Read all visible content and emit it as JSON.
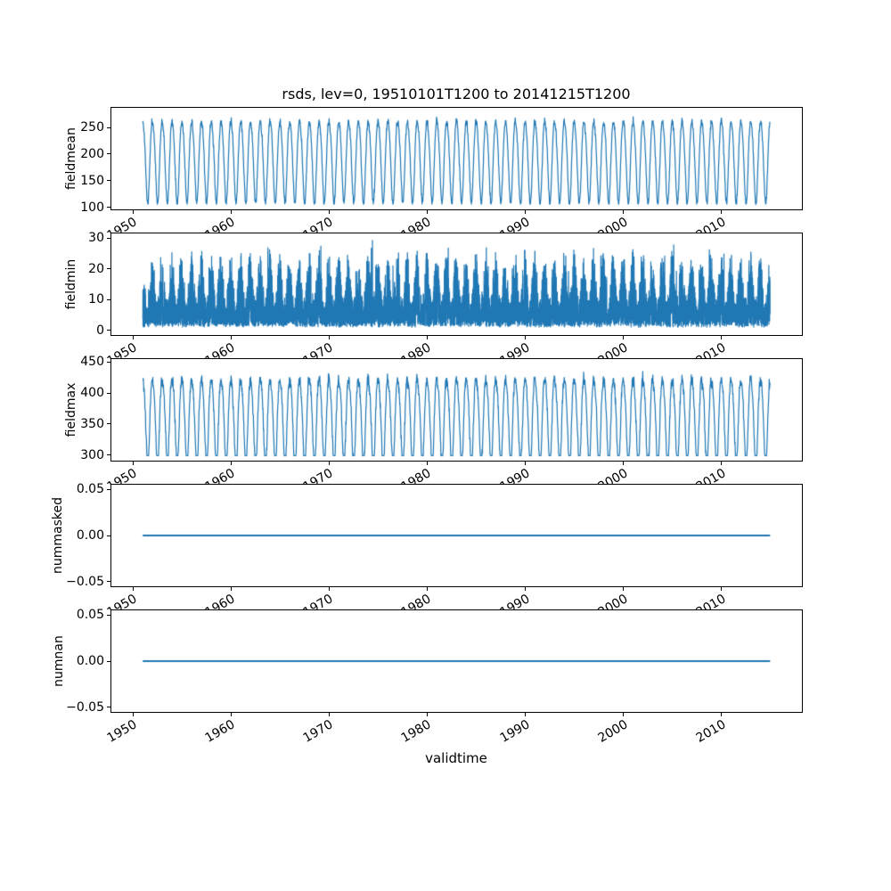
{
  "figure": {
    "title": "rsds, lev=0, 19510101T1200 to 20141215T1200",
    "xlabel": "validtime",
    "background": "#ffffff",
    "line_color": "#1f77b4",
    "axes_edge_color": "#000000"
  },
  "x_axis": {
    "tick_labels": [
      "1950",
      "1960",
      "1970",
      "1980",
      "1990",
      "2000",
      "2010"
    ],
    "tick_years": [
      1950,
      1960,
      1970,
      1980,
      1990,
      2000,
      2010
    ],
    "range_years": [
      1947.8,
      2018.2
    ],
    "data_start_year": 1951.0,
    "data_end_year": 2014.96
  },
  "chart_data": [
    {
      "type": "line",
      "name": "fieldmean",
      "ylabel": "fieldmean",
      "yticks": [
        100,
        150,
        200,
        250
      ],
      "ytick_labels": [
        "100",
        "150",
        "200",
        "250"
      ],
      "ylim": [
        96,
        287
      ],
      "value_range": [
        106,
        277
      ],
      "description": "Annual seasonal oscillation 1951-2014, troughs ~106-135, peaks ~250-277",
      "series": {
        "kind": "seasonal",
        "samples_per_year": 40,
        "mean": 191,
        "amp": 77,
        "harm2": 8,
        "noise": 7,
        "phase": 0.75,
        "clamp": [
          106,
          277
        ],
        "seed": 11
      }
    },
    {
      "type": "line",
      "name": "fieldmin",
      "ylabel": "fieldmin",
      "yticks": [
        0,
        10,
        20,
        30
      ],
      "ytick_labels": [
        "0",
        "10",
        "20",
        "30"
      ],
      "ylim": [
        -1.5,
        31.5
      ],
      "value_range": [
        0.3,
        30
      ],
      "description": "Dense noisy band, floor ~1-3, annual clusters of spikes up to ~30",
      "series": {
        "kind": "noisy",
        "samples_per_year": 110,
        "floor": 1.0,
        "floor_var": 1.8,
        "band": 16,
        "band_seasonal": 8,
        "spike_chance": 0.005,
        "spike_max": 30,
        "clamp": [
          0.3,
          30.3
        ],
        "seed": 22
      }
    },
    {
      "type": "line",
      "name": "fieldmax",
      "ylabel": "fieldmax",
      "yticks": [
        300,
        350,
        400,
        450
      ],
      "ytick_labels": [
        "300",
        "350",
        "400",
        "450"
      ],
      "ylim": [
        291,
        455
      ],
      "value_range": [
        299,
        447
      ],
      "description": "Annual cycle with sharp peaks ~420-447 and troughs ~299-330",
      "series": {
        "kind": "seasonal",
        "samples_per_year": 40,
        "mean": 360,
        "amp": 70,
        "harm2": 10,
        "noise": 9,
        "phase": 0.75,
        "clamp": [
          299,
          447
        ],
        "seed": 33
      }
    },
    {
      "type": "line",
      "name": "nummasked",
      "ylabel": "nummasked",
      "yticks": [
        -0.05,
        0,
        0.05
      ],
      "ytick_labels": [
        "−0.05",
        "0.00",
        "0.05"
      ],
      "ylim": [
        -0.055,
        0.055
      ],
      "value_range": [
        0,
        0
      ],
      "description": "Constant 0.00 for entire period",
      "series": {
        "kind": "constant",
        "value": 0,
        "samples_per_year": 2,
        "seed": 44
      }
    },
    {
      "type": "line",
      "name": "numnan",
      "ylabel": "numnan",
      "yticks": [
        -0.05,
        0,
        0.05
      ],
      "ytick_labels": [
        "−0.05",
        "0.00",
        "0.05"
      ],
      "ylim": [
        -0.055,
        0.055
      ],
      "value_range": [
        0,
        0
      ],
      "description": "Constant 0.00 for entire period",
      "series": {
        "kind": "constant",
        "value": 0,
        "samples_per_year": 2,
        "seed": 55
      }
    }
  ]
}
